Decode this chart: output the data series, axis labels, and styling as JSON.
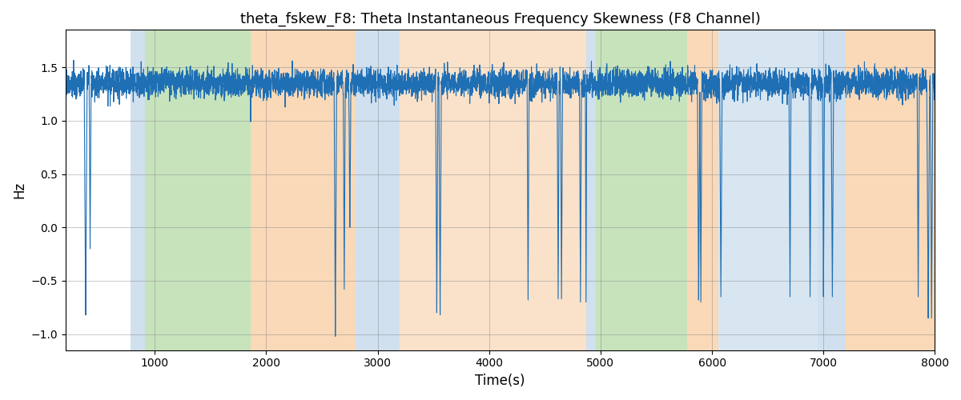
{
  "title": "theta_fskew_F8: Theta Instantaneous Frequency Skewness (F8 Channel)",
  "xlabel": "Time(s)",
  "ylabel": "Hz",
  "xlim": [
    200,
    8000
  ],
  "ylim": [
    -1.15,
    1.85
  ],
  "yticks": [
    -1.0,
    -0.5,
    0.0,
    0.5,
    1.0,
    1.5
  ],
  "xticks": [
    1000,
    2000,
    3000,
    4000,
    5000,
    6000,
    7000,
    8000
  ],
  "line_color": "#1f6fb5",
  "line_width": 0.8,
  "bg_regions": [
    {
      "xstart": 780,
      "xend": 910,
      "color": "#aac8e0",
      "alpha": 0.55
    },
    {
      "xstart": 910,
      "xend": 1860,
      "color": "#90c97a",
      "alpha": 0.5
    },
    {
      "xstart": 1860,
      "xend": 2800,
      "color": "#f5c08a",
      "alpha": 0.6
    },
    {
      "xstart": 2800,
      "xend": 3200,
      "color": "#aac8e0",
      "alpha": 0.55
    },
    {
      "xstart": 3200,
      "xend": 4460,
      "color": "#f5c08a",
      "alpha": 0.45
    },
    {
      "xstart": 4460,
      "xend": 4870,
      "color": "#f5c08a",
      "alpha": 0.45
    },
    {
      "xstart": 4870,
      "xend": 4960,
      "color": "#aac8e0",
      "alpha": 0.55
    },
    {
      "xstart": 4960,
      "xend": 5780,
      "color": "#90c97a",
      "alpha": 0.5
    },
    {
      "xstart": 5780,
      "xend": 6060,
      "color": "#f5c08a",
      "alpha": 0.6
    },
    {
      "xstart": 6060,
      "xend": 6950,
      "color": "#aac8e0",
      "alpha": 0.45
    },
    {
      "xstart": 6950,
      "xend": 7200,
      "color": "#aac8e0",
      "alpha": 0.55
    },
    {
      "xstart": 7200,
      "xend": 8000,
      "color": "#f5c08a",
      "alpha": 0.6
    }
  ],
  "seed": 42,
  "figsize": [
    12,
    5
  ],
  "dpi": 100
}
